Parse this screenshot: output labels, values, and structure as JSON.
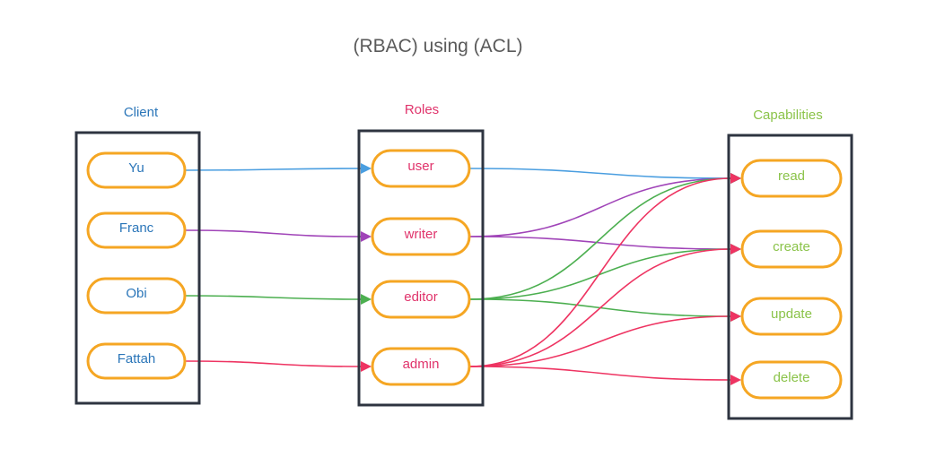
{
  "diagram": {
    "title": "(RBAC) using (ACL)",
    "colors": {
      "box_border": "#2e3440",
      "pill_border": "#f5a623",
      "client_text": "#2b76b9",
      "role_text": "#e0336b",
      "capability_text": "#8bc34a",
      "edge_blue": "#4a9ee0",
      "edge_purple": "#a044b8",
      "edge_green": "#4caf50",
      "edge_red": "#ee3462"
    },
    "columns": {
      "clients": {
        "label": "Client",
        "items": [
          "Yu",
          "Franc",
          "Obi",
          "Fattah"
        ]
      },
      "roles": {
        "label": "Roles",
        "items": [
          "user",
          "writer",
          "editor",
          "admin"
        ]
      },
      "capabilities": {
        "label": "Capabilities",
        "items": [
          "read",
          "create",
          "update",
          "delete"
        ]
      }
    },
    "edges": [
      {
        "from": "Yu",
        "to": "user",
        "color": "edge_blue"
      },
      {
        "from": "Franc",
        "to": "writer",
        "color": "edge_purple"
      },
      {
        "from": "Obi",
        "to": "editor",
        "color": "edge_green"
      },
      {
        "from": "Fattah",
        "to": "admin",
        "color": "edge_red"
      },
      {
        "from": "user",
        "to": "read",
        "color": "edge_blue"
      },
      {
        "from": "writer",
        "to": "read",
        "color": "edge_purple"
      },
      {
        "from": "writer",
        "to": "create",
        "color": "edge_purple"
      },
      {
        "from": "editor",
        "to": "read",
        "color": "edge_green"
      },
      {
        "from": "editor",
        "to": "create",
        "color": "edge_green"
      },
      {
        "from": "editor",
        "to": "update",
        "color": "edge_green"
      },
      {
        "from": "admin",
        "to": "read",
        "color": "edge_red"
      },
      {
        "from": "admin",
        "to": "create",
        "color": "edge_red"
      },
      {
        "from": "admin",
        "to": "update",
        "color": "edge_red"
      },
      {
        "from": "admin",
        "to": "delete",
        "color": "edge_red"
      }
    ]
  }
}
